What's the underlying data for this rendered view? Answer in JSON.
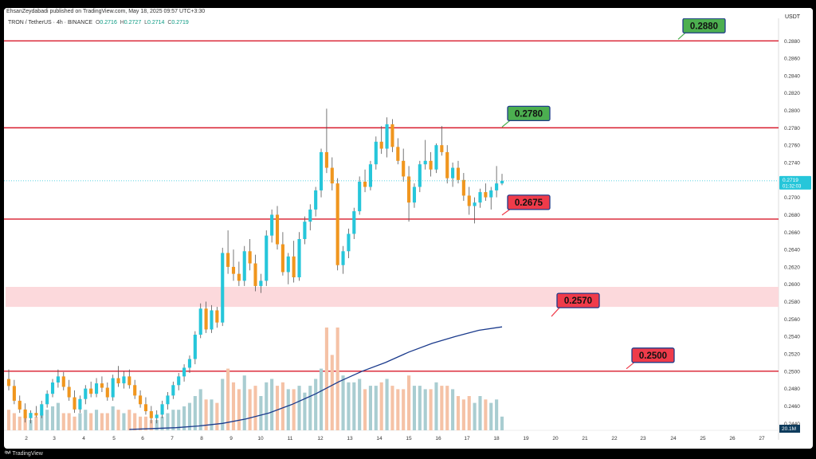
{
  "header": {
    "published": "EhsanZeydabadi published on TradingView.com, May 18, 2025 09:57 UTC+3:30",
    "currency": "USDT"
  },
  "legend": {
    "symbol": "TRON / TetherUS · 4h · BINANCE",
    "o_label": "O",
    "o_value": "0.2716",
    "h_label": "H",
    "h_value": "0.2727",
    "l_label": "L",
    "l_value": "0.2714",
    "c_label": "C",
    "c_value": "0.2719"
  },
  "branding": {
    "logo_text": "TradingView"
  },
  "colors": {
    "up": "#26c6da",
    "down": "#f0961e",
    "vol_up": "#a9cdd1",
    "vol_down": "#f5c2a6",
    "hline": "#d81b2c",
    "zone": "#fcd9dc",
    "ma": "#1a3a8c",
    "label_green": "#4caf50",
    "label_red": "#ef3b4a"
  },
  "chart_data": {
    "type": "candlestick",
    "symbol": "TRX/USDT",
    "timeframe": "4h",
    "x_ticks": [
      "2",
      "3",
      "4",
      "5",
      "6",
      "7",
      "8",
      "9",
      "10",
      "11",
      "12",
      "13",
      "14",
      "15",
      "16",
      "17",
      "18",
      "19",
      "20",
      "21",
      "22",
      "23",
      "24",
      "25",
      "26",
      "27"
    ],
    "y_ticks": [
      "0.2440",
      "0.2460",
      "0.2480",
      "0.2500",
      "0.2520",
      "0.2540",
      "0.2560",
      "0.2580",
      "0.2600",
      "0.2620",
      "0.2640",
      "0.2660",
      "0.2680",
      "0.2700",
      "0.2720",
      "0.2740",
      "0.2760",
      "0.2780",
      "0.2800",
      "0.2820",
      "0.2840",
      "0.2860",
      "0.2880"
    ],
    "ylim": [
      0.2432,
      0.2905
    ],
    "last_price": "0.2719",
    "countdown": "01:32:03",
    "volume_label": "20.1M",
    "levels": [
      {
        "value": 0.288,
        "label": "0.2880",
        "color": "green"
      },
      {
        "value": 0.278,
        "label": "0.2780",
        "color": "green"
      },
      {
        "value": 0.2675,
        "label": "0.2675",
        "color": "red"
      },
      {
        "value": 0.25,
        "label": "0.2500",
        "color": "red"
      }
    ],
    "zone": {
      "from": 0.2574,
      "to": 0.2597,
      "label": "0.2570"
    },
    "ohlc": [
      [
        0.2491,
        0.2502,
        0.2478,
        0.2483
      ],
      [
        0.2483,
        0.249,
        0.2462,
        0.2466
      ],
      [
        0.2466,
        0.2472,
        0.2452,
        0.2456
      ],
      [
        0.2456,
        0.2463,
        0.2441,
        0.2446
      ],
      [
        0.2446,
        0.2455,
        0.244,
        0.2452
      ],
      [
        0.2452,
        0.246,
        0.2447,
        0.2449
      ],
      [
        0.2449,
        0.2466,
        0.2446,
        0.2462
      ],
      [
        0.2462,
        0.2478,
        0.2458,
        0.2474
      ],
      [
        0.2474,
        0.2491,
        0.247,
        0.2487
      ],
      [
        0.2487,
        0.2502,
        0.2481,
        0.2494
      ],
      [
        0.2494,
        0.2499,
        0.2478,
        0.2482
      ],
      [
        0.2482,
        0.249,
        0.2466,
        0.247
      ],
      [
        0.247,
        0.2478,
        0.2452,
        0.2456
      ],
      [
        0.2456,
        0.2472,
        0.2452,
        0.2468
      ],
      [
        0.2468,
        0.2484,
        0.2462,
        0.248
      ],
      [
        0.248,
        0.2488,
        0.247,
        0.2474
      ],
      [
        0.2474,
        0.2492,
        0.247,
        0.2486
      ],
      [
        0.2486,
        0.2494,
        0.2476,
        0.2481
      ],
      [
        0.2481,
        0.2487,
        0.2466,
        0.247
      ],
      [
        0.247,
        0.2496,
        0.2466,
        0.2492
      ],
      [
        0.2492,
        0.2506,
        0.2482,
        0.2486
      ],
      [
        0.2486,
        0.25,
        0.248,
        0.2494
      ],
      [
        0.2494,
        0.2502,
        0.248,
        0.2484
      ],
      [
        0.2484,
        0.249,
        0.2468,
        0.2472
      ],
      [
        0.2472,
        0.2478,
        0.2458,
        0.2462
      ],
      [
        0.2462,
        0.247,
        0.245,
        0.2454
      ],
      [
        0.2454,
        0.246,
        0.244,
        0.2446
      ],
      [
        0.2446,
        0.2455,
        0.244,
        0.245
      ],
      [
        0.245,
        0.2466,
        0.2446,
        0.2462
      ],
      [
        0.2462,
        0.2476,
        0.2456,
        0.2472
      ],
      [
        0.2472,
        0.2488,
        0.2468,
        0.2484
      ],
      [
        0.2484,
        0.2498,
        0.2478,
        0.2494
      ],
      [
        0.2494,
        0.2508,
        0.2488,
        0.2504
      ],
      [
        0.2504,
        0.2518,
        0.2498,
        0.2514
      ],
      [
        0.2514,
        0.2546,
        0.2508,
        0.2542
      ],
      [
        0.2542,
        0.2578,
        0.2538,
        0.2572
      ],
      [
        0.2572,
        0.258,
        0.2544,
        0.2548
      ],
      [
        0.2548,
        0.2576,
        0.2544,
        0.257
      ],
      [
        0.257,
        0.2574,
        0.255,
        0.2556
      ],
      [
        0.2556,
        0.2642,
        0.2552,
        0.2636
      ],
      [
        0.2636,
        0.2662,
        0.2612,
        0.262
      ],
      [
        0.262,
        0.264,
        0.2604,
        0.2612
      ],
      [
        0.2612,
        0.2626,
        0.2598,
        0.2604
      ],
      [
        0.2604,
        0.2644,
        0.2598,
        0.2638
      ],
      [
        0.2638,
        0.2652,
        0.2616,
        0.2624
      ],
      [
        0.2624,
        0.2634,
        0.2592,
        0.2598
      ],
      [
        0.2598,
        0.2612,
        0.259,
        0.2604
      ],
      [
        0.2604,
        0.2662,
        0.2598,
        0.2656
      ],
      [
        0.2656,
        0.2686,
        0.2648,
        0.268
      ],
      [
        0.268,
        0.269,
        0.264,
        0.2646
      ],
      [
        0.2646,
        0.266,
        0.261,
        0.2614
      ],
      [
        0.2614,
        0.2636,
        0.26,
        0.2632
      ],
      [
        0.2632,
        0.265,
        0.2602,
        0.2608
      ],
      [
        0.2608,
        0.266,
        0.2604,
        0.2652
      ],
      [
        0.2652,
        0.2678,
        0.2646,
        0.2672
      ],
      [
        0.2672,
        0.2692,
        0.2662,
        0.2686
      ],
      [
        0.2686,
        0.2712,
        0.2678,
        0.2708
      ],
      [
        0.2708,
        0.2756,
        0.27,
        0.2752
      ],
      [
        0.2752,
        0.2802,
        0.2728,
        0.2734
      ],
      [
        0.2734,
        0.2746,
        0.2708,
        0.2716
      ],
      [
        0.2716,
        0.2722,
        0.2616,
        0.2622
      ],
      [
        0.2622,
        0.2644,
        0.2612,
        0.2638
      ],
      [
        0.2638,
        0.2664,
        0.263,
        0.2658
      ],
      [
        0.2658,
        0.2688,
        0.2652,
        0.2684
      ],
      [
        0.2684,
        0.2724,
        0.268,
        0.2718
      ],
      [
        0.2718,
        0.2732,
        0.2706,
        0.2712
      ],
      [
        0.2712,
        0.2742,
        0.2708,
        0.2738
      ],
      [
        0.2738,
        0.277,
        0.2732,
        0.2764
      ],
      [
        0.2764,
        0.2782,
        0.275,
        0.2756
      ],
      [
        0.2756,
        0.2792,
        0.2746,
        0.2784
      ],
      [
        0.2784,
        0.279,
        0.2752,
        0.2758
      ],
      [
        0.2758,
        0.2768,
        0.2738,
        0.2742
      ],
      [
        0.2742,
        0.2756,
        0.2718,
        0.2724
      ],
      [
        0.2724,
        0.2736,
        0.2672,
        0.2694
      ],
      [
        0.2694,
        0.2716,
        0.2688,
        0.2712
      ],
      [
        0.2712,
        0.2742,
        0.2706,
        0.2738
      ],
      [
        0.2738,
        0.2766,
        0.2732,
        0.2742
      ],
      [
        0.2742,
        0.2752,
        0.2724,
        0.2732
      ],
      [
        0.2732,
        0.2762,
        0.2728,
        0.276
      ],
      [
        0.276,
        0.2782,
        0.2748,
        0.2752
      ],
      [
        0.2752,
        0.276,
        0.2716,
        0.2722
      ],
      [
        0.2722,
        0.274,
        0.2712,
        0.2734
      ],
      [
        0.2734,
        0.2742,
        0.2716,
        0.272
      ],
      [
        0.272,
        0.2728,
        0.2696,
        0.2702
      ],
      [
        0.2702,
        0.2712,
        0.268,
        0.269
      ],
      [
        0.269,
        0.27,
        0.267,
        0.2694
      ],
      [
        0.2694,
        0.271,
        0.2688,
        0.2706
      ],
      [
        0.2706,
        0.2716,
        0.2696,
        0.27
      ],
      [
        0.27,
        0.2712,
        0.2686,
        0.2708
      ],
      [
        0.2708,
        0.2736,
        0.27,
        0.2716
      ],
      [
        0.2716,
        0.2727,
        0.2714,
        0.2719
      ]
    ],
    "volume": [
      6,
      5,
      4,
      4,
      3,
      4,
      5,
      6,
      7,
      8,
      5,
      5,
      4,
      5,
      6,
      5,
      6,
      5,
      5,
      7,
      6,
      5,
      6,
      5,
      4,
      4,
      3,
      3,
      4,
      5,
      6,
      6,
      7,
      8,
      10,
      12,
      9,
      9,
      8,
      15,
      18,
      14,
      12,
      16,
      12,
      13,
      10,
      14,
      15,
      13,
      14,
      12,
      12,
      13,
      11,
      13,
      15,
      18,
      30,
      22,
      30,
      16,
      14,
      14,
      15,
      12,
      13,
      13,
      14,
      15,
      13,
      12,
      12,
      16,
      13,
      13,
      12,
      12,
      14,
      13,
      13,
      12,
      10,
      9,
      10,
      8,
      10,
      9,
      8,
      9,
      4
    ],
    "ma": [
      0.2433,
      0.2434,
      0.2435,
      0.2437,
      0.244,
      0.2445,
      0.2452,
      0.2462,
      0.2474,
      0.2488,
      0.25,
      0.251,
      0.2522,
      0.2532,
      0.254,
      0.2547,
      0.2551
    ],
    "ma_x": [
      32,
      38,
      44,
      50,
      56,
      62,
      68,
      74,
      80,
      86,
      90,
      96,
      104,
      112,
      120,
      130,
      134
    ]
  }
}
